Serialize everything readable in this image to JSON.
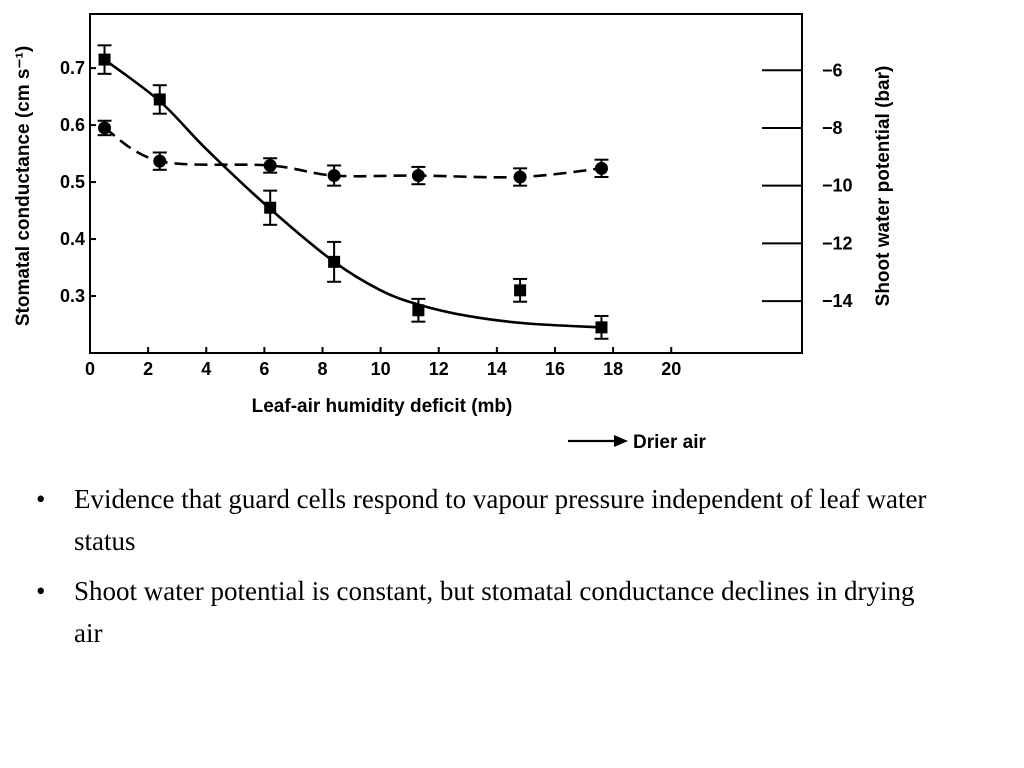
{
  "chart_data": {
    "type": "line",
    "xlabel": "Leaf-air humidity deficit (mb)",
    "ylabel": "Stomatal conductance (cm s⁻¹)",
    "y2label": "Shoot water potential (bar)",
    "xlim": [
      0,
      24.5
    ],
    "ylim": [
      0.2,
      0.795
    ],
    "y2lim": [
      -15.8,
      -4.05
    ],
    "x_ticks": [
      0,
      2,
      4,
      6,
      8,
      10,
      12,
      14,
      16,
      18,
      20
    ],
    "y_ticks": [
      0.3,
      0.4,
      0.5,
      0.6,
      0.7
    ],
    "y_tick_labels": [
      "0.3",
      "0.4",
      "0.5",
      "0.6",
      "0.7"
    ],
    "y2_ticks": [
      -6,
      -8,
      -10,
      -12,
      -14
    ],
    "y2_tick_labels": [
      "−6",
      "−8",
      "−10",
      "−12",
      "−14"
    ],
    "annotation": "Drier air",
    "series": [
      {
        "axis": "left",
        "marker": "square",
        "line": "solid",
        "x": [
          0.5,
          2.4,
          6.2,
          8.4,
          11.3,
          14.8,
          17.6
        ],
        "y": [
          0.715,
          0.645,
          0.455,
          0.36,
          0.275,
          0.31,
          0.245
        ],
        "err": [
          0.025,
          0.025,
          0.03,
          0.035,
          0.02,
          0.02,
          0.02
        ],
        "fit_x": [
          0.5,
          2.4,
          4.0,
          6.2,
          8.4,
          10.0,
          11.3,
          13.0,
          15.0,
          17.6
        ],
        "fit_y": [
          0.715,
          0.642,
          0.558,
          0.453,
          0.36,
          0.31,
          0.285,
          0.265,
          0.252,
          0.245
        ]
      },
      {
        "axis": "right",
        "marker": "circle",
        "line": "dashed",
        "x": [
          0.5,
          2.4,
          6.2,
          8.4,
          11.3,
          14.8,
          17.6
        ],
        "y": [
          -8.0,
          -9.15,
          -9.3,
          -9.65,
          -9.65,
          -9.7,
          -9.4
        ],
        "err": [
          0.25,
          0.3,
          0.25,
          0.35,
          0.3,
          0.3,
          0.3
        ]
      }
    ]
  },
  "bullets": [
    "Evidence that guard cells respond to vapour pressure independent of leaf water status",
    "Shoot water potential is constant, but stomatal conductance declines in drying air"
  ],
  "bullet_symbol": "•"
}
